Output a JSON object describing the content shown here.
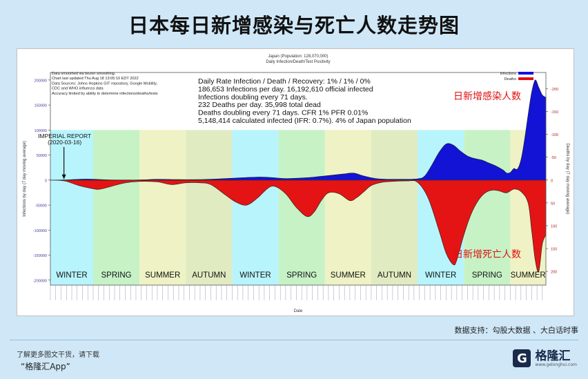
{
  "page": {
    "title": "日本每日新增感染与死亡人数走势图",
    "source_note": "数据支持：勾股大数据 、大白话时事",
    "footer_tip": "了解更多图文干货，请下载",
    "footer_app": "“格隆汇App”",
    "brand_name": "格隆汇",
    "brand_sub": "www.gelonghui.com"
  },
  "chart_data": {
    "type": "area",
    "title": "Japan (Population: 128,070,000)",
    "subtitle": "Daily Infection/Death/Test Positivity",
    "xlabel": "Date",
    "ylabel_left": "Infections by day (7 day moving average)",
    "ylabel_right": "Deaths by day (7 day moving average)",
    "ylim_left": [
      -210000,
      215000
    ],
    "y_ticks_left": [
      200000,
      150000,
      100000,
      50000,
      0,
      -50000,
      -100000,
      -150000,
      -200000
    ],
    "y_tick_labels_left": [
      "200000",
      "150000",
      "100000",
      "50000",
      "0",
      "-50000",
      "-100000",
      "-150000",
      "-200000"
    ],
    "y_ticks_right_values": [
      -200,
      -150,
      -100,
      -50,
      0,
      50,
      100,
      150,
      200
    ],
    "y_tick_labels_right": [
      "-200",
      "-150",
      "-100",
      "-50",
      "0",
      "50",
      "100",
      "150",
      "200"
    ],
    "legend": [
      {
        "name": "Infections",
        "color": "#1010dd"
      },
      {
        "name": "Deaths",
        "color": "#e01010"
      }
    ],
    "legend_placement": "top-right",
    "notes_left": [
      "Data smoothed via bezier smoothing.",
      "Chart last updated Thu Aug 18 13:05:10 EDT 2022",
      "Data Sources: Johns Hopkins GIT repository, Google Mobility,",
      "CDC and WHO influenza data",
      "Accuracy limited by ability to determine infections/deaths/tests"
    ],
    "stats": [
      "Daily Rate Infection / Death / Recovery: 1% / 1% / 0%",
      "186,653 Infections per day.  16,192,610 official infected",
      "Infections doubling every 71 days.",
      "232 Deaths per day.  35,998 total dead",
      "Deaths doubling every 71 days.  CFR 1%  PFR 0.01%",
      "5,148,414 calculated infected (IFR: 0.7%).  4% of Japan population"
    ],
    "annotation": {
      "text_line1": "IMPERIAL REPORT",
      "text_line2": "(2020-03-16)",
      "x": 4
    },
    "callouts": {
      "infections": "日新增感染人数",
      "deaths": "日新增死亡人数"
    },
    "seasons": [
      {
        "label": "WINTER",
        "start": 0,
        "end": 12,
        "color": "#b8f4fc"
      },
      {
        "label": "SPRING",
        "start": 12,
        "end": 25,
        "color": "#c6f2c6"
      },
      {
        "label": "SUMMER",
        "start": 25,
        "end": 38,
        "color": "#eef2c4"
      },
      {
        "label": "AUTUMN",
        "start": 38,
        "end": 51,
        "color": "#e0ebc2"
      },
      {
        "label": "WINTER",
        "start": 51,
        "end": 64,
        "color": "#b8f4fc"
      },
      {
        "label": "SPRING",
        "start": 64,
        "end": 77,
        "color": "#c6f2c6"
      },
      {
        "label": "SUMMER",
        "start": 77,
        "end": 90,
        "color": "#eef2c4"
      },
      {
        "label": "AUTUMN",
        "start": 90,
        "end": 103,
        "color": "#e0ebc2"
      },
      {
        "label": "WINTER",
        "start": 103,
        "end": 116,
        "color": "#b8f4fc"
      },
      {
        "label": "SPRING",
        "start": 116,
        "end": 129,
        "color": "#c6f2c6"
      },
      {
        "label": "SUMMER",
        "start": 129,
        "end": 139,
        "color": "#eef2c4"
      }
    ],
    "x_range": [
      0,
      139
    ],
    "infections_series": [
      [
        0,
        0
      ],
      [
        4,
        300
      ],
      [
        10,
        2000
      ],
      [
        16,
        500
      ],
      [
        22,
        200
      ],
      [
        26,
        600
      ],
      [
        30,
        1500
      ],
      [
        36,
        1000
      ],
      [
        42,
        1000
      ],
      [
        46,
        2000
      ],
      [
        52,
        4000
      ],
      [
        58,
        6000
      ],
      [
        62,
        5000
      ],
      [
        66,
        3000
      ],
      [
        70,
        4000
      ],
      [
        74,
        6000
      ],
      [
        78,
        9000
      ],
      [
        82,
        12000
      ],
      [
        85,
        14000
      ],
      [
        88,
        8000
      ],
      [
        92,
        2500
      ],
      [
        98,
        1500
      ],
      [
        103,
        2500
      ],
      [
        105,
        8000
      ],
      [
        107,
        30000
      ],
      [
        109,
        55000
      ],
      [
        111,
        72000
      ],
      [
        113,
        70000
      ],
      [
        115,
        58000
      ],
      [
        117,
        48000
      ],
      [
        119,
        43000
      ],
      [
        121,
        40000
      ],
      [
        123,
        34000
      ],
      [
        125,
        28000
      ],
      [
        127,
        20000
      ],
      [
        128,
        14000
      ],
      [
        129,
        15000
      ],
      [
        130,
        23000
      ],
      [
        131,
        22000
      ],
      [
        132,
        40000
      ],
      [
        133,
        80000
      ],
      [
        134,
        130000
      ],
      [
        135,
        175000
      ],
      [
        136,
        200000
      ],
      [
        137,
        185000
      ],
      [
        138,
        170000
      ],
      [
        139,
        165000
      ]
    ],
    "deaths_series": [
      [
        0,
        0
      ],
      [
        4,
        -2
      ],
      [
        8,
        -12
      ],
      [
        12,
        -19
      ],
      [
        14,
        -20
      ],
      [
        17,
        -14
      ],
      [
        21,
        -6
      ],
      [
        25,
        -3
      ],
      [
        30,
        -4
      ],
      [
        34,
        -10
      ],
      [
        38,
        -6
      ],
      [
        42,
        -6
      ],
      [
        45,
        -10
      ],
      [
        49,
        -32
      ],
      [
        52,
        -48
      ],
      [
        55,
        -55
      ],
      [
        58,
        -40
      ],
      [
        61,
        -18
      ],
      [
        63,
        -14
      ],
      [
        66,
        -30
      ],
      [
        69,
        -60
      ],
      [
        72,
        -80
      ],
      [
        74,
        -70
      ],
      [
        76,
        -45
      ],
      [
        78,
        -28
      ],
      [
        81,
        -30
      ],
      [
        84,
        -45
      ],
      [
        86,
        -38
      ],
      [
        88,
        -25
      ],
      [
        90,
        -12
      ],
      [
        93,
        -5
      ],
      [
        96,
        -3
      ],
      [
        100,
        -2
      ],
      [
        103,
        -5
      ],
      [
        106,
        -40
      ],
      [
        109,
        -110
      ],
      [
        111,
        -160
      ],
      [
        113,
        -185
      ],
      [
        114,
        -175
      ],
      [
        116,
        -120
      ],
      [
        118,
        -75
      ],
      [
        120,
        -45
      ],
      [
        122,
        -28
      ],
      [
        124,
        -22
      ],
      [
        126,
        -24
      ],
      [
        128,
        -28
      ],
      [
        130,
        -20
      ],
      [
        132,
        -25
      ],
      [
        134,
        -50
      ],
      [
        135,
        -110
      ],
      [
        136,
        -175
      ],
      [
        137,
        -200
      ],
      [
        138,
        -140
      ],
      [
        139,
        -120
      ]
    ],
    "deaths_ylim": [
      -230,
      230
    ]
  }
}
